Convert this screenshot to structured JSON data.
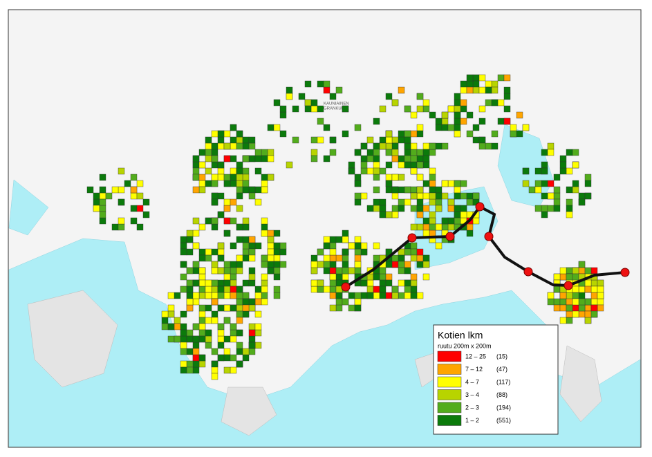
{
  "map": {
    "place_labels": [
      "KAUNIAINEN",
      "GRANKULLA"
    ]
  },
  "legend": {
    "title": "Kotien lkm",
    "subtitle": "ruutu 200m x 200m",
    "items": [
      {
        "range": "12  –  25",
        "count": "(15)",
        "color": "#ff0000"
      },
      {
        "range": "7  –  12",
        "count": "(47)",
        "color": "#ffa500"
      },
      {
        "range": "4  –  7",
        "count": "(117)",
        "color": "#ffff00"
      },
      {
        "range": "3  –  4",
        "count": "(88)",
        "color": "#b8d400"
      },
      {
        "range": "2  –  3",
        "count": "(194)",
        "color": "#52ac1c"
      },
      {
        "range": "1  –  2",
        "count": "(551)",
        "color": "#0b7a0b"
      }
    ]
  }
}
